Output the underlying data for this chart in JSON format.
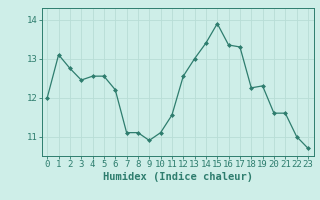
{
  "x": [
    0,
    1,
    2,
    3,
    4,
    5,
    6,
    7,
    8,
    9,
    10,
    11,
    12,
    13,
    14,
    15,
    16,
    17,
    18,
    19,
    20,
    21,
    22,
    23
  ],
  "y": [
    12.0,
    13.1,
    12.75,
    12.45,
    12.55,
    12.55,
    12.2,
    11.1,
    11.1,
    10.9,
    11.1,
    11.55,
    12.55,
    13.0,
    13.4,
    13.9,
    13.35,
    13.3,
    12.25,
    12.3,
    11.6,
    11.6,
    11.0,
    10.7
  ],
  "line_color": "#2e7d6e",
  "marker": "D",
  "marker_size": 2.0,
  "bg_color": "#ceeee8",
  "grid_color": "#b8ddd6",
  "xlabel": "Humidex (Indice chaleur)",
  "ylim": [
    10.5,
    14.3
  ],
  "xlim": [
    -0.5,
    23.5
  ],
  "yticks": [
    11,
    12,
    13,
    14
  ],
  "xticks": [
    0,
    1,
    2,
    3,
    4,
    5,
    6,
    7,
    8,
    9,
    10,
    11,
    12,
    13,
    14,
    15,
    16,
    17,
    18,
    19,
    20,
    21,
    22,
    23
  ],
  "tick_color": "#2e7d6e",
  "label_color": "#2e7d6e",
  "xlabel_fontsize": 7.5,
  "tick_fontsize": 6.5
}
